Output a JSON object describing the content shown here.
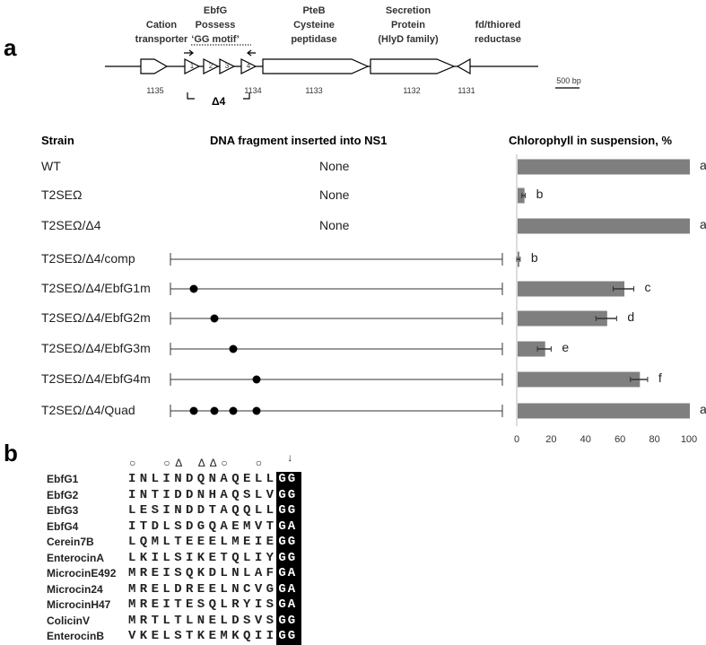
{
  "panels": {
    "a": "a",
    "b": "b"
  },
  "gene_map": {
    "labels": [
      {
        "text": "Cation transporter",
        "lines": [
          "Cation",
          "transporter"
        ]
      },
      {
        "text": "EbfG Possess 'GG motif'",
        "lines": [
          "EbfG",
          "Possess",
          "‘GG motif’"
        ]
      },
      {
        "text": "PteB Cysteine peptidase",
        "lines": [
          "PteB",
          "Cysteine",
          "peptidase"
        ]
      },
      {
        "text": "Secretion Protein (HlyD family)",
        "lines": [
          "Secretion",
          "Protein",
          "(HlyD family)"
        ]
      },
      {
        "text": "fd/thiored reductase",
        "lines": [
          "fd/thiored",
          "reductase"
        ]
      }
    ],
    "gene_numbers": [
      "1135",
      "1134",
      "1133",
      "1132",
      "1131"
    ],
    "ebfg_numbers": [
      "1",
      "2",
      "3",
      "4"
    ],
    "deletion_label": "Δ4",
    "scale_bar": "500 bp"
  },
  "table": {
    "headers": {
      "strain": "Strain",
      "fragment": "DNA fragment inserted into NS1",
      "chlorophyll": "Chlorophyll in suspension, %"
    },
    "rows": [
      {
        "strain": "WT",
        "fragment": "None",
        "dots": []
      },
      {
        "strain": "T2SEΩ",
        "fragment": "None",
        "dots": []
      },
      {
        "strain": "T2SEΩ/Δ4",
        "fragment": "None",
        "dots": []
      },
      {
        "strain": "T2SEΩ/Δ4/comp",
        "fragment": "",
        "dots": []
      },
      {
        "strain": "T2SEΩ/Δ4/EbfG1m",
        "fragment": "",
        "dots": [
          1
        ]
      },
      {
        "strain": "T2SEΩ/Δ4/EbfG2m",
        "fragment": "",
        "dots": [
          2
        ]
      },
      {
        "strain": "T2SEΩ/Δ4/EbfG3m",
        "fragment": "",
        "dots": [
          3
        ]
      },
      {
        "strain": "T2SEΩ/Δ4/EbfG4m",
        "fragment": "",
        "dots": [
          4
        ]
      },
      {
        "strain": "T2SEΩ/Δ4/Quad",
        "fragment": "",
        "dots": [
          1,
          2,
          3,
          4
        ]
      }
    ]
  },
  "chart_data": {
    "type": "bar",
    "orientation": "horizontal",
    "title": "Chlorophyll in suspension, %",
    "categories": [
      "WT",
      "T2SEΩ",
      "T2SEΩ/Δ4",
      "T2SEΩ/Δ4/comp",
      "T2SEΩ/Δ4/EbfG1m",
      "T2SEΩ/Δ4/EbfG2m",
      "T2SEΩ/Δ4/EbfG3m",
      "T2SEΩ/Δ4/EbfG4m",
      "T2SEΩ/Δ4/Quad"
    ],
    "values": [
      100,
      4,
      100,
      1,
      62,
      52,
      16,
      71,
      100
    ],
    "errors": [
      0,
      1,
      0,
      1,
      6,
      6,
      4,
      5,
      0
    ],
    "significance": [
      "a",
      "b",
      "a",
      "b",
      "c",
      "d",
      "e",
      "f",
      "a"
    ],
    "xlim": [
      0,
      100
    ],
    "xticks": [
      "0",
      "20",
      "40",
      "60",
      "80",
      "100"
    ],
    "bar_color": "#7f7f7f"
  },
  "alignment": {
    "markers": [
      {
        "col": 0,
        "sym": "○"
      },
      {
        "col": 3,
        "sym": "○"
      },
      {
        "col": 4,
        "sym": "Δ"
      },
      {
        "col": 6,
        "sym": "Δ"
      },
      {
        "col": 7,
        "sym": "Δ"
      },
      {
        "col": 8,
        "sym": "○"
      },
      {
        "col": 11,
        "sym": "○"
      },
      {
        "col": 14,
        "sym": "↓"
      }
    ],
    "rows": [
      {
        "name": "EbfG1",
        "seq": "INLINDQNAQELL",
        "motif": "GG"
      },
      {
        "name": "EbfG2",
        "seq": "INTIDDNHAQSLV",
        "motif": "GG"
      },
      {
        "name": "EbfG3",
        "seq": "LESINDDTAQQLL",
        "motif": "GG"
      },
      {
        "name": "EbfG4",
        "seq": "ITDLSDGQAEMVT",
        "motif": "GA"
      },
      {
        "name": "Cerein7B",
        "seq": "LQMLTEEELMEIE",
        "motif": "GG"
      },
      {
        "name": "EnterocinA",
        "seq": "LKILSIKETQLIY",
        "motif": "GG"
      },
      {
        "name": "MicrocinE492",
        "seq": "MREISQKDLNLAF",
        "motif": "GA"
      },
      {
        "name": "Microcin24",
        "seq": "MRELDREELNCVG",
        "motif": "GA"
      },
      {
        "name": "MicrocinH47",
        "seq": "MREITESQLRYIS",
        "motif": "GA"
      },
      {
        "name": "ColicinV",
        "seq": "MRTLTLNELDSVS",
        "motif": "GG"
      },
      {
        "name": "EnterocinB",
        "seq": "VKELSTKEMKQII",
        "motif": "GG"
      }
    ]
  }
}
